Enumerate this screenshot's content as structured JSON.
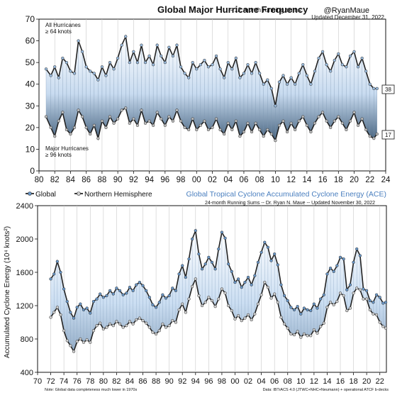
{
  "top_chart": {
    "title": "Global Major Hurricane Frequency",
    "subtitle": "-- 12 month running sums",
    "handle": "@RyanMaue",
    "updated": "Updated December 31, 2022",
    "label_all": [
      "All Hurricanes",
      "≥ 64 knots"
    ],
    "label_major": [
      "Major Hurricanes",
      "≥ 96 knots"
    ]
  },
  "bottom_chart": {
    "legend_global": "Global",
    "legend_nh": "Northern Hemisphere",
    "title": "Global Tropical Cyclone Accumulated Cyclone Energy (ACE)",
    "subtitle": "24-month Running Sums -- Dr. Ryan N. Maue -- Updated November 30, 2022",
    "ylabel": "Accumulated Cyclone Energy (10⁴ knots²)",
    "note_left": "Note: Global data completeness much lower in 1970s",
    "note_right": "Data: IBTrACS 4.0 (JTWC+NHC+Neumann) + operational ATCF b-decks"
  },
  "chart_data": [
    {
      "type": "line",
      "title": "Global Major Hurricane Frequency",
      "subtitle": "-- 12 month running sums",
      "xlim": [
        80,
        24
      ],
      "ylim": [
        0,
        70
      ],
      "yticks": [
        0,
        10,
        20,
        30,
        40,
        50,
        60,
        70
      ],
      "xtick_labels": [
        "80",
        "82",
        "84",
        "86",
        "88",
        "90",
        "92",
        "94",
        "96",
        "98",
        "00",
        "02",
        "04",
        "06",
        "08",
        "10",
        "12",
        "14",
        "16",
        "18",
        "20",
        "22",
        "24"
      ],
      "x": [
        1980.9,
        1981.5,
        1982.0,
        1982.5,
        1983.0,
        1983.5,
        1984.0,
        1984.5,
        1985.0,
        1985.5,
        1986.0,
        1986.5,
        1987.0,
        1987.5,
        1988.0,
        1988.5,
        1989.0,
        1989.5,
        1990.0,
        1990.5,
        1991.0,
        1991.5,
        1992.0,
        1992.5,
        1993.0,
        1993.5,
        1994.0,
        1994.5,
        1995.0,
        1995.5,
        1996.0,
        1996.5,
        1997.0,
        1997.5,
        1998.0,
        1998.5,
        1999.0,
        1999.5,
        2000.0,
        2000.5,
        2001.0,
        2001.5,
        2002.0,
        2002.5,
        2003.0,
        2003.5,
        2004.0,
        2004.5,
        2005.0,
        2005.5,
        2006.0,
        2006.5,
        2007.0,
        2007.5,
        2008.0,
        2008.5,
        2009.0,
        2009.5,
        2010.0,
        2010.5,
        2011.0,
        2011.5,
        2012.0,
        2012.5,
        2013.0,
        2013.5,
        2014.0,
        2014.5,
        2015.0,
        2015.5,
        2016.0,
        2016.5,
        2017.0,
        2017.5,
        2018.0,
        2018.5,
        2019.0,
        2019.5,
        2020.0,
        2020.5,
        2021.0,
        2021.5,
        2022.0,
        2022.5,
        2022.9
      ],
      "series": [
        {
          "name": "All Hurricanes ≥ 64 knots",
          "end_label": "38",
          "values": [
            47,
            44,
            48,
            43,
            52,
            50,
            46,
            45,
            60,
            55,
            48,
            46,
            45,
            42,
            48,
            44,
            50,
            47,
            52,
            58,
            62,
            50,
            55,
            50,
            58,
            50,
            53,
            49,
            58,
            53,
            50,
            57,
            53,
            58,
            48,
            45,
            43,
            50,
            47,
            49,
            51,
            48,
            49,
            53,
            47,
            43,
            50,
            47,
            52,
            43,
            45,
            49,
            45,
            50,
            45,
            40,
            42,
            38,
            30,
            41,
            44,
            40,
            43,
            40,
            45,
            49,
            44,
            40,
            46,
            52,
            55,
            49,
            46,
            51,
            54,
            49,
            48,
            53,
            55,
            48,
            52,
            46,
            40,
            38,
            38
          ]
        },
        {
          "name": "Major Hurricanes ≥ 96 knots",
          "end_label": "17",
          "values": [
            25,
            20,
            16,
            23,
            27,
            19,
            17,
            20,
            28,
            25,
            20,
            17,
            21,
            15,
            23,
            20,
            25,
            22,
            24,
            28,
            29,
            22,
            24,
            21,
            28,
            22,
            23,
            21,
            27,
            24,
            21,
            25,
            23,
            28,
            23,
            20,
            19,
            24,
            19,
            21,
            23,
            19,
            20,
            24,
            19,
            17,
            22,
            19,
            23,
            16,
            18,
            22,
            18,
            22,
            19,
            16,
            19,
            17,
            14,
            21,
            23,
            18,
            22,
            19,
            23,
            25,
            21,
            18,
            22,
            25,
            27,
            23,
            20,
            23,
            25,
            22,
            19,
            23,
            27,
            21,
            24,
            19,
            16,
            15,
            17
          ]
        }
      ]
    },
    {
      "type": "line",
      "title": "Global Tropical Cyclone Accumulated Cyclone Energy (ACE)",
      "subtitle": "24-month Running Sums -- Dr. Ryan N. Maue -- Updated November 30, 2022",
      "ylabel": "Accumulated Cyclone Energy (10⁴ knots²)",
      "xlim": [
        70,
        24
      ],
      "ylim": [
        400,
        2400
      ],
      "yticks": [
        400,
        800,
        1200,
        1600,
        2000,
        2400
      ],
      "xtick_labels": [
        "70",
        "72",
        "74",
        "76",
        "78",
        "80",
        "82",
        "84",
        "86",
        "88",
        "90",
        "92",
        "94",
        "96",
        "98",
        "00",
        "02",
        "04",
        "06",
        "08",
        "10",
        "12",
        "14",
        "16",
        "18",
        "20",
        "22"
      ],
      "x": [
        1972.0,
        1972.5,
        1973.0,
        1973.5,
        1974.0,
        1974.5,
        1975.0,
        1975.5,
        1976.0,
        1976.5,
        1977.0,
        1977.5,
        1978.0,
        1978.5,
        1979.0,
        1979.5,
        1980.0,
        1980.5,
        1981.0,
        1981.5,
        1982.0,
        1982.5,
        1983.0,
        1983.5,
        1984.0,
        1984.5,
        1985.0,
        1985.5,
        1986.0,
        1986.5,
        1987.0,
        1987.5,
        1988.0,
        1988.5,
        1989.0,
        1989.5,
        1990.0,
        1990.5,
        1991.0,
        1991.5,
        1992.0,
        1992.5,
        1993.0,
        1993.5,
        1994.0,
        1994.5,
        1995.0,
        1995.5,
        1996.0,
        1996.5,
        1997.0,
        1997.5,
        1998.0,
        1998.5,
        1999.0,
        1999.5,
        2000.0,
        2000.5,
        2001.0,
        2001.5,
        2002.0,
        2002.5,
        2003.0,
        2003.5,
        2004.0,
        2004.5,
        2005.0,
        2005.5,
        2006.0,
        2006.5,
        2007.0,
        2007.5,
        2008.0,
        2008.5,
        2009.0,
        2009.5,
        2010.0,
        2010.5,
        2011.0,
        2011.5,
        2012.0,
        2012.5,
        2013.0,
        2013.5,
        2014.0,
        2014.5,
        2015.0,
        2015.5,
        2016.0,
        2016.5,
        2017.0,
        2017.5,
        2018.0,
        2018.5,
        2019.0,
        2019.5,
        2020.0,
        2020.5,
        2021.0,
        2021.5,
        2022.0,
        2022.5,
        2022.9
      ],
      "series": [
        {
          "name": "Global",
          "values": [
            1520,
            1580,
            1730,
            1600,
            1400,
            1250,
            1120,
            1050,
            1180,
            1220,
            1150,
            1170,
            1110,
            1250,
            1280,
            1340,
            1300,
            1320,
            1380,
            1340,
            1410,
            1380,
            1330,
            1350,
            1420,
            1380,
            1450,
            1480,
            1440,
            1380,
            1300,
            1210,
            1180,
            1240,
            1330,
            1290,
            1320,
            1410,
            1380,
            1580,
            1680,
            1540,
            1760,
            2000,
            2100,
            1820,
            1640,
            1700,
            1780,
            1720,
            1640,
            1880,
            2080,
            2010,
            1700,
            1610,
            1480,
            1520,
            1420,
            1480,
            1540,
            1450,
            1560,
            1720,
            1840,
            1960,
            1900,
            1740,
            1820,
            1690,
            1450,
            1320,
            1260,
            1180,
            1150,
            1190,
            1100,
            1170,
            1150,
            1140,
            1220,
            1170,
            1280,
            1330,
            1580,
            1650,
            1610,
            1680,
            1780,
            1760,
            1390,
            1450,
            1720,
            1880,
            1800,
            1400,
            1380,
            1260,
            1240,
            1330,
            1300,
            1230,
            1240
          ]
        },
        {
          "name": "Northern Hemisphere",
          "values": [
            1060,
            1120,
            1180,
            1090,
            900,
            780,
            720,
            650,
            770,
            800,
            760,
            790,
            760,
            900,
            960,
            990,
            920,
            940,
            980,
            960,
            1010,
            980,
            940,
            960,
            1010,
            980,
            1030,
            1050,
            1020,
            990,
            940,
            880,
            860,
            900,
            980,
            940,
            960,
            1020,
            1000,
            1150,
            1220,
            1120,
            1280,
            1430,
            1520,
            1320,
            1200,
            1240,
            1300,
            1260,
            1190,
            1280,
            1400,
            1350,
            1200,
            1140,
            1040,
            1080,
            1020,
            1050,
            1090,
            1030,
            1100,
            1220,
            1330,
            1480,
            1420,
            1290,
            1340,
            1240,
            1060,
            980,
            930,
            860,
            850,
            890,
            820,
            860,
            840,
            840,
            910,
            870,
            950,
            990,
            1180,
            1240,
            1210,
            1250,
            1350,
            1320,
            1140,
            1170,
            1350,
            1410,
            1390,
            1280,
            1280,
            1150,
            1100,
            1090,
            1000,
            950,
            930
          ]
        }
      ]
    }
  ]
}
